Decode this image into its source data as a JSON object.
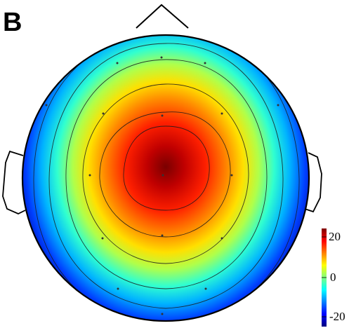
{
  "panel_label": "B",
  "colorbar": {
    "ticks": [
      "20",
      "0",
      "-20"
    ],
    "range": [
      -25,
      25
    ],
    "colors": [
      "#00007f",
      "#0000ff",
      "#0080ff",
      "#00ffff",
      "#80ff80",
      "#ffff00",
      "#ff8000",
      "#ff0000",
      "#7f0000"
    ]
  },
  "head": {
    "outline_color": "#000000",
    "background": "#ffffff"
  },
  "map": {
    "peak_color": "#7f0000",
    "edge_color": "#00007f",
    "contour_count": 7
  }
}
